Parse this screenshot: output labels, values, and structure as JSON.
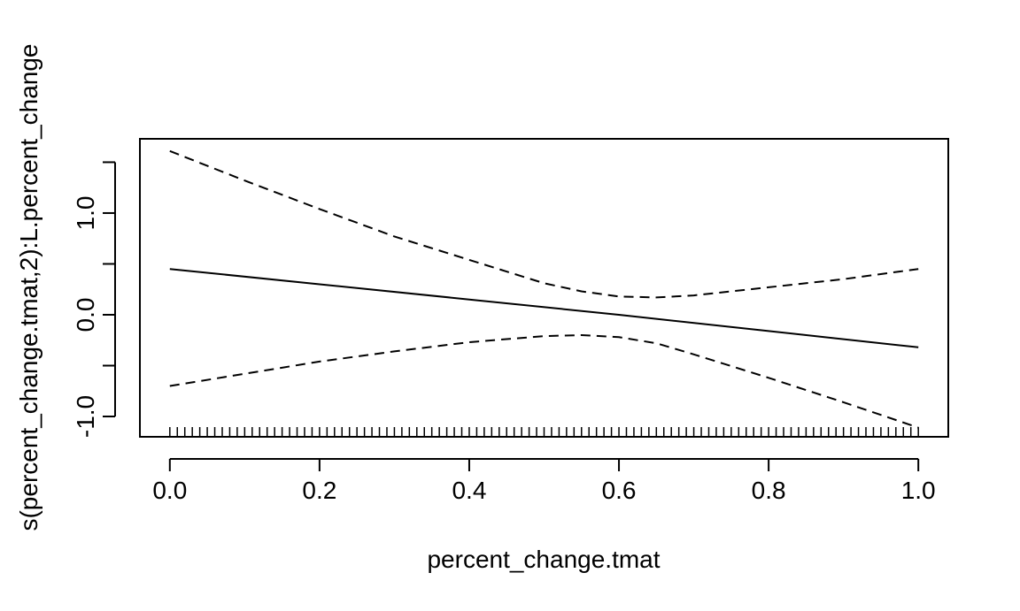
{
  "chart_data": {
    "type": "line",
    "title": "",
    "xlabel": "percent_change.tmat",
    "ylabel": "s(percent_change.tmat,2):L.percent_change",
    "xlim": [
      -0.04,
      1.04
    ],
    "ylim": [
      -1.2,
      1.73
    ],
    "x_ticks": [
      0.0,
      0.2,
      0.4,
      0.6,
      0.8,
      1.0
    ],
    "x_tick_labels": [
      "0.0",
      "0.2",
      "0.4",
      "0.6",
      "0.8",
      "1.0"
    ],
    "y_ticks": [
      -1.0,
      -0.5,
      0.0,
      0.5,
      1.0,
      1.5
    ],
    "y_tick_labels": [
      "-1.0",
      "",
      "0.0",
      "",
      "1.0",
      ""
    ],
    "grid": false,
    "legend": "none",
    "series": [
      {
        "style": "solid",
        "x": [
          0.0,
          0.2,
          0.4,
          0.6,
          0.8,
          1.0
        ],
        "y": [
          0.45,
          0.3,
          0.15,
          0.0,
          -0.16,
          -0.32
        ]
      },
      {
        "style": "dashed",
        "x": [
          0.0,
          0.1,
          0.2,
          0.3,
          0.4,
          0.5,
          0.55,
          0.6,
          0.65,
          0.7,
          0.8,
          0.9,
          1.0
        ],
        "y": [
          1.61,
          1.32,
          1.04,
          0.77,
          0.54,
          0.31,
          0.23,
          0.18,
          0.17,
          0.19,
          0.27,
          0.35,
          0.45
        ]
      },
      {
        "style": "dashed",
        "x": [
          0.0,
          0.1,
          0.2,
          0.3,
          0.4,
          0.5,
          0.55,
          0.6,
          0.65,
          0.7,
          0.8,
          0.9,
          1.0
        ],
        "y": [
          -0.7,
          -0.58,
          -0.46,
          -0.36,
          -0.27,
          -0.21,
          -0.2,
          -0.22,
          -0.28,
          -0.39,
          -0.62,
          -0.86,
          -1.11
        ]
      }
    ],
    "rug": {
      "start": 0.0,
      "end": 1.0,
      "step": 0.01
    }
  }
}
